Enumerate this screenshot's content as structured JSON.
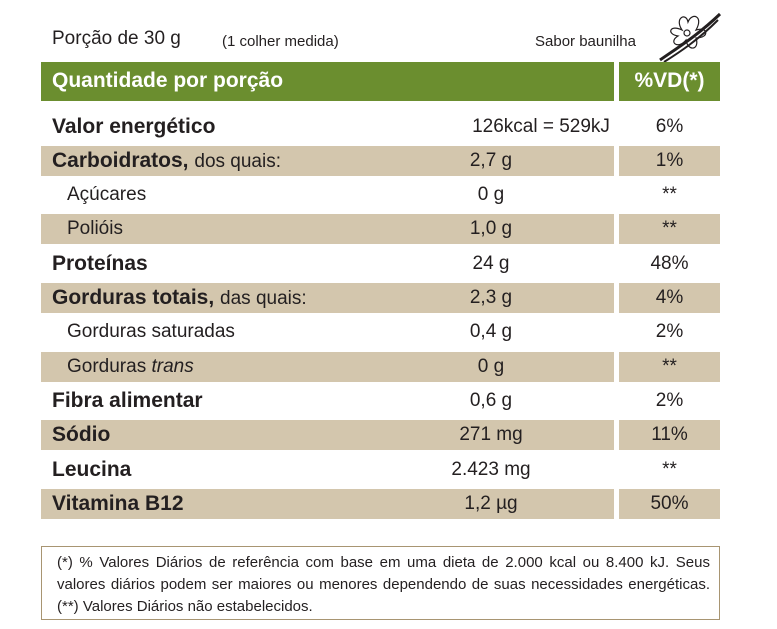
{
  "header": {
    "portion": "Porção de 30 g",
    "portion_detail": "(1 colher medida)",
    "flavor": "Sabor baunilha",
    "flower_icon": "vanilla-flower-icon"
  },
  "table": {
    "header_left": "Quantidade por porção",
    "header_right": "%VD(*)",
    "colors": {
      "header": "#6b8e2f",
      "shaded": "#d3c6ad",
      "note_border": "#a89572"
    },
    "rows": [
      {
        "name": "Valor energético",
        "suffix": "",
        "amount": "126kcal = 529kJ",
        "vd": "6%"
      },
      {
        "name": "Carboidratos,",
        "suffix": "dos quais:",
        "amount": "2,7 g",
        "vd": "1%"
      },
      {
        "name": "Açúcares",
        "suffix": "",
        "amount": "0 g",
        "vd": "**"
      },
      {
        "name": "Polióis",
        "suffix": "",
        "amount": "1,0 g",
        "vd": "**"
      },
      {
        "name": "Proteínas",
        "suffix": "",
        "amount": "24 g",
        "vd": "48%"
      },
      {
        "name": "Gorduras totais,",
        "suffix": "das quais:",
        "amount": "2,3 g",
        "vd": "4%"
      },
      {
        "name": "Gorduras saturadas",
        "suffix": "",
        "amount": "0,4 g",
        "vd": "2%"
      },
      {
        "name": "Gorduras",
        "suffix": "trans",
        "amount": "0 g",
        "vd": "**"
      },
      {
        "name": "Fibra alimentar",
        "suffix": "",
        "amount": "0,6 g",
        "vd": "2%"
      },
      {
        "name": "Sódio",
        "suffix": "",
        "amount": "271 mg",
        "vd": "11%"
      },
      {
        "name": "Leucina",
        "suffix": "",
        "amount": "2.423 mg",
        "vd": "**"
      },
      {
        "name": "Vitamina B12",
        "suffix": "",
        "amount": "1,2 µg",
        "vd": "50%"
      }
    ]
  },
  "footnote": "(*) % Valores Diários de referência com base em uma dieta de 2.000 kcal ou 8.400 kJ. Seus valores diários podem ser maiores ou menores dependendo de suas necessidades energéticas. (**) Valores Diários não estabelecidos."
}
